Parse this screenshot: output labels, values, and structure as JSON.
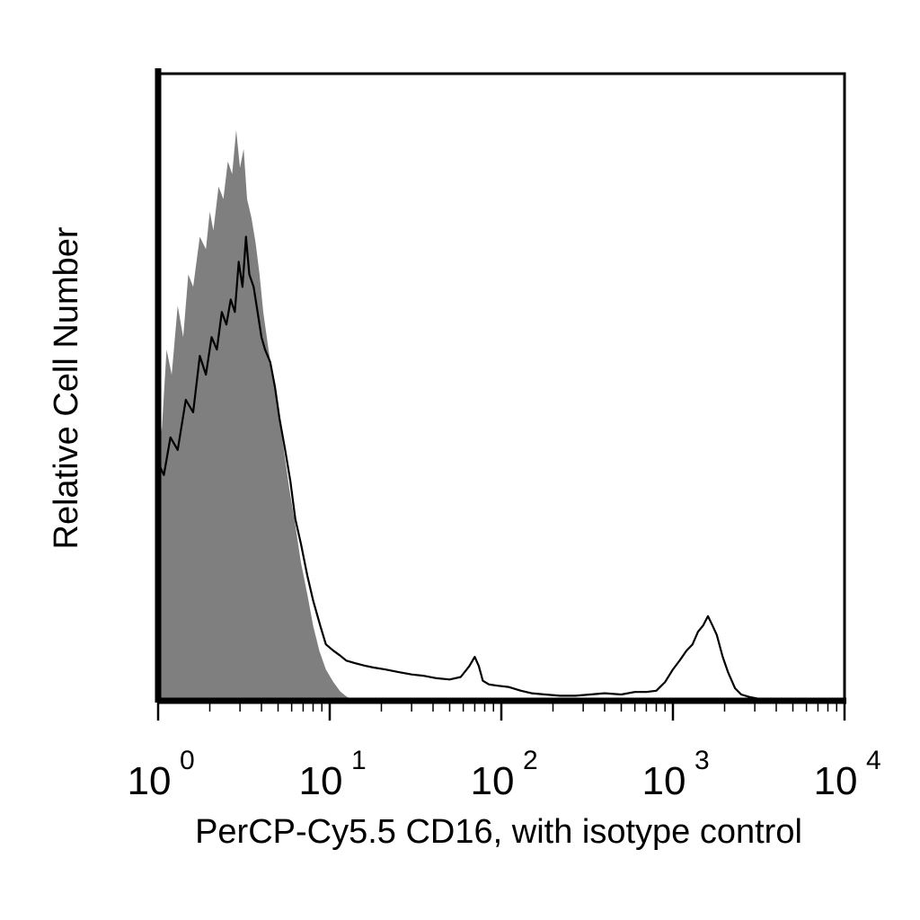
{
  "chart_data": {
    "type": "area",
    "title": "",
    "xlabel": "PerCP-Cy5.5 CD16, with isotype control",
    "ylabel": "Relative Cell Number",
    "x_scale": "log10",
    "xlim": [
      1,
      10000
    ],
    "ylim": [
      0,
      100
    ],
    "grid": false,
    "legend": "none",
    "x_tick_labels": [
      {
        "base": "10",
        "exp": "0",
        "value": 1
      },
      {
        "base": "10",
        "exp": "1",
        "value": 10
      },
      {
        "base": "10",
        "exp": "2",
        "value": 100
      },
      {
        "base": "10",
        "exp": "3",
        "value": 1000
      },
      {
        "base": "10",
        "exp": "4",
        "value": 10000
      }
    ],
    "series": [
      {
        "style": "filled",
        "color": "#7f7f7f",
        "x": [
          1.0,
          1.05,
          1.12,
          1.2,
          1.3,
          1.4,
          1.5,
          1.6,
          1.75,
          1.9,
          2.0,
          2.1,
          2.25,
          2.4,
          2.55,
          2.7,
          2.85,
          3.0,
          3.15,
          3.3,
          3.5,
          3.7,
          3.9,
          4.1,
          4.4,
          4.7,
          5.0,
          5.4,
          5.8,
          6.3,
          6.8,
          7.4,
          8.0,
          8.7,
          9.5,
          10.5,
          11.5,
          12.5,
          13.5,
          14.5
        ],
        "y": [
          48,
          43,
          56,
          52,
          63,
          58,
          68,
          66,
          74,
          72,
          78,
          75,
          82,
          80,
          86,
          84,
          91,
          85,
          88,
          80,
          77,
          73,
          68,
          62,
          56,
          51,
          46,
          40,
          34,
          28,
          22,
          17,
          12,
          8,
          5,
          3,
          1.5,
          0.7,
          0.2,
          0
        ]
      },
      {
        "style": "line",
        "color": "#000000",
        "x": [
          1.0,
          1.08,
          1.18,
          1.3,
          1.45,
          1.6,
          1.75,
          1.9,
          2.05,
          2.2,
          2.35,
          2.5,
          2.65,
          2.8,
          2.95,
          3.1,
          3.25,
          3.4,
          3.6,
          3.8,
          4.0,
          4.2,
          4.5,
          4.8,
          5.1,
          5.5,
          5.9,
          6.3,
          6.8,
          7.4,
          8.0,
          8.8,
          9.5,
          10.5,
          11.5,
          12.5,
          14.0,
          16.0,
          18.0,
          21.0,
          25.0,
          30.0,
          35.0,
          42.0,
          50.0,
          58.0,
          65.0,
          70.0,
          74.0,
          78.0,
          85.0,
          95.0,
          110.0,
          130.0,
          150.0,
          180.0,
          220.0,
          270.0,
          330.0,
          400.0,
          500.0,
          600.0,
          700.0,
          800.0,
          900.0,
          1000.0,
          1100.0,
          1200.0,
          1300.0,
          1400.0,
          1500.0,
          1600.0,
          1700.0,
          1800.0,
          1950.0,
          2100.0,
          2300.0,
          2500.0,
          2800.0,
          3200.0,
          4000.0,
          6000.0,
          10000.0
        ],
        "y": [
          38,
          36,
          42,
          40,
          48,
          46,
          55,
          52,
          58,
          56,
          62,
          60,
          64,
          62,
          70,
          66,
          74,
          68,
          66,
          62,
          58,
          56,
          54,
          50,
          45,
          40,
          35,
          29,
          25,
          20,
          16,
          12,
          9,
          8,
          7.2,
          6.4,
          6,
          5.6,
          5.3,
          5,
          4.6,
          4.2,
          4.0,
          3.6,
          3.4,
          3.8,
          5.5,
          7,
          5.5,
          3.2,
          2.6,
          2.4,
          2.2,
          1.6,
          1.2,
          1.0,
          0.8,
          0.8,
          1.0,
          1.2,
          1.0,
          1.4,
          1.4,
          1.6,
          3,
          5,
          6.5,
          8,
          9,
          11,
          12,
          13.5,
          12,
          10.5,
          7,
          4.5,
          2,
          1,
          0.6,
          0.3,
          0.2,
          0.2,
          0.2
        ]
      }
    ]
  }
}
